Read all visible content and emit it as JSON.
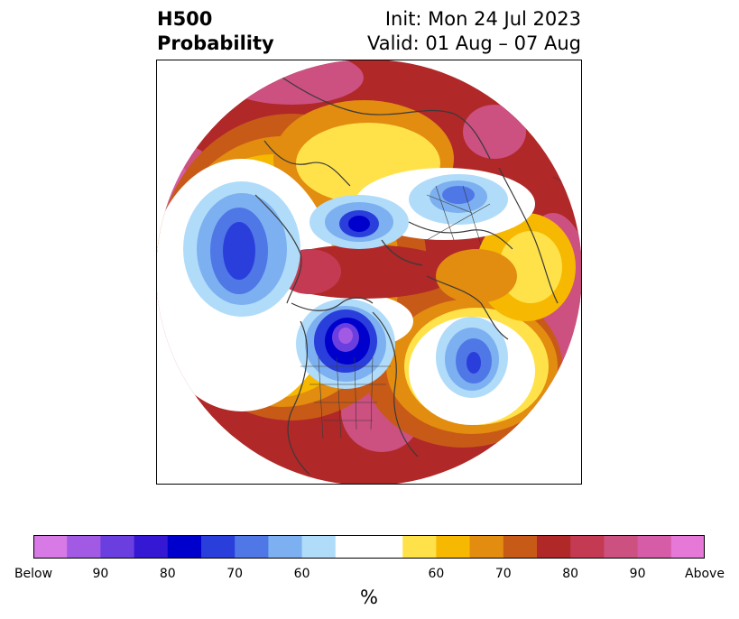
{
  "header": {
    "title_line1": "H500",
    "title_line2": "Probability",
    "init": "Init: Mon 24 Jul 2023",
    "valid": "Valid: 01 Aug – 07 Aug"
  },
  "colorbar": {
    "colors": [
      "#d77ae6",
      "#a25ae4",
      "#6b3ee0",
      "#3518d4",
      "#0000cc",
      "#2a3edc",
      "#4f77e6",
      "#7db0f0",
      "#b0dcfa",
      "#ffffff",
      "#ffe24a",
      "#f6b800",
      "#e28c10",
      "#c85a18",
      "#b02828",
      "#c43a52",
      "#cc5080",
      "#d65ca8",
      "#e678d8"
    ],
    "tick_labels": [
      "Below",
      "90",
      "80",
      "70",
      "60",
      "60",
      "70",
      "80",
      "90",
      "Above"
    ],
    "unit": "%"
  },
  "map": {
    "projection": "north-polar stereographic",
    "background_color": "#c23030"
  }
}
